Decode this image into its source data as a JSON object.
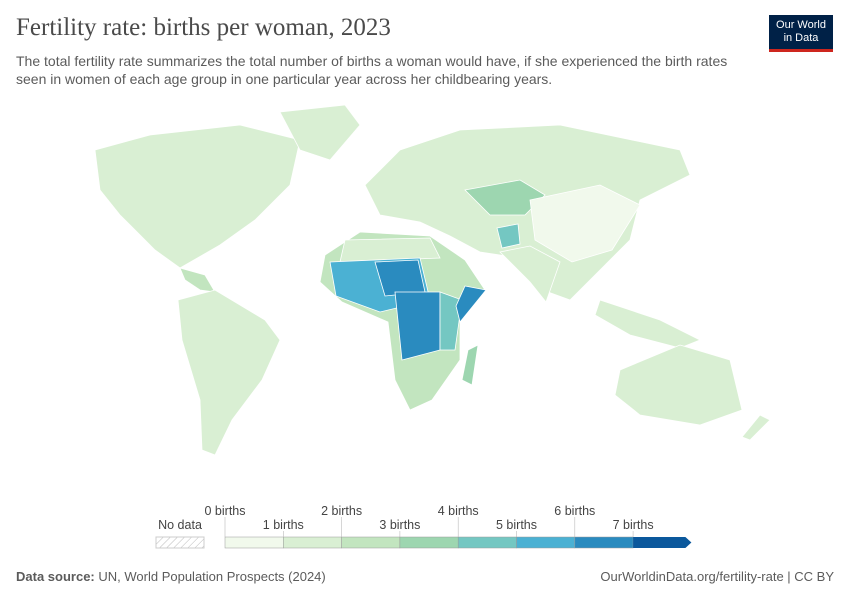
{
  "header": {
    "title": "Fertility rate: births per woman, 2023",
    "subtitle": "The total fertility rate summarizes the total number of births a woman would have, if she experienced the birth rates seen in women of each age group in one particular year across her childbearing years.",
    "logo": [
      "Our World",
      "in Data"
    ]
  },
  "legend": {
    "no_data": "No data",
    "labels": [
      "0 births",
      "1 births",
      "2 births",
      "3 births",
      "4 births",
      "5 births",
      "6 births",
      "7 births"
    ],
    "colors": [
      "#f1f9ec",
      "#d9efd3",
      "#c2e5bf",
      "#9dd6b0",
      "#74c7c2",
      "#4bb1d3",
      "#2a8bbf",
      "#0b589c"
    ]
  },
  "footer": {
    "source_label": "Data source:",
    "source": "UN, World Population Prospects (2024)",
    "link": "OurWorldinData.org/fertility-rate | CC BY"
  }
}
